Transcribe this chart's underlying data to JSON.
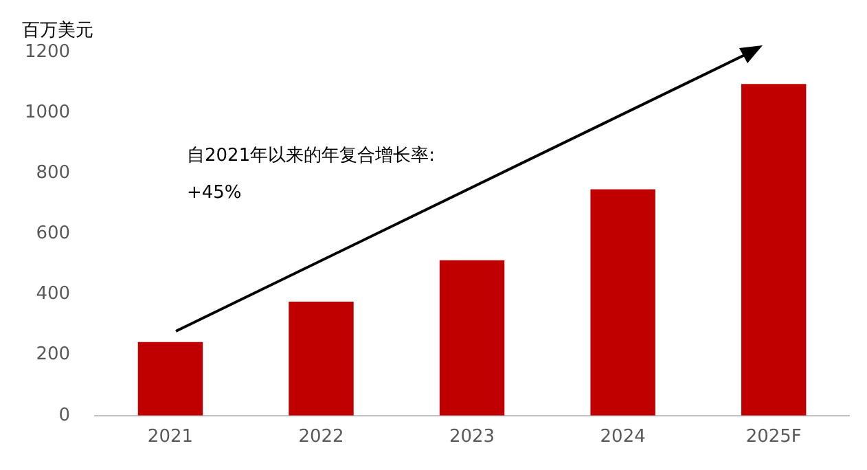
{
  "chart_data": {
    "type": "bar",
    "ylabel": "百万美元",
    "categories": [
      "2021",
      "2022",
      "2023",
      "2024",
      "2025F"
    ],
    "series": [
      {
        "color": "#c00000",
        "values": [
          243,
          376,
          513,
          747,
          1095
        ]
      }
    ],
    "ylim": [
      0,
      1200
    ],
    "yticks": [
      0,
      200,
      400,
      600,
      800,
      1000,
      1200
    ],
    "grid": false,
    "legend": false,
    "annotations": [
      "自2021年以来的年复合增长率:\n+45%"
    ]
  }
}
